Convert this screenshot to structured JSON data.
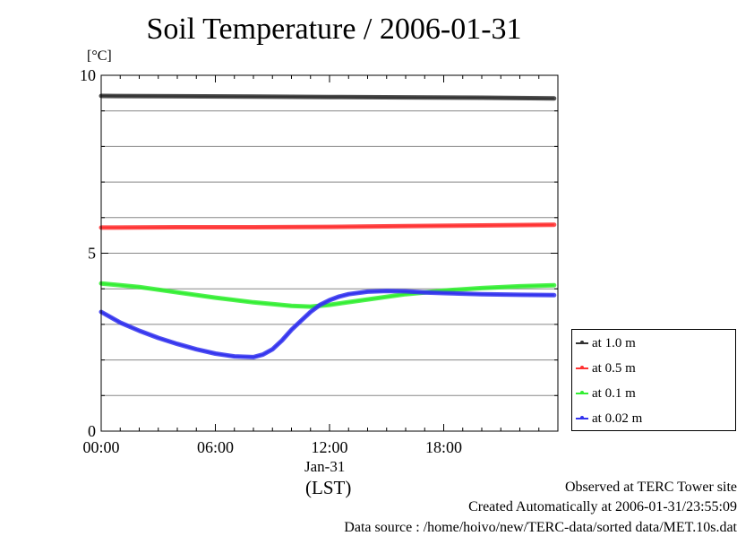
{
  "title": "Soil Temperature / 2006-01-31",
  "y_unit": "[°C]",
  "x_date_label": "Jan-31",
  "x_tz_label": "(LST)",
  "footer": {
    "line1": "Observed at TERC Tower site",
    "line2": "Created Automatically at 2006-01-31/23:55:09",
    "line3": "Data source : /home/hoivo/new/TERC-data/sorted  data/MET.10s.dat"
  },
  "chart_data": {
    "type": "line",
    "title": "Soil Temperature / 2006-01-31",
    "xlabel": "(LST)",
    "ylabel": "[°C]",
    "x_unit": "hours since 00:00 LST",
    "xlim": [
      0,
      24
    ],
    "ylim": [
      0,
      10
    ],
    "x_ticks": [
      {
        "value": 0,
        "label": "00:00"
      },
      {
        "value": 6,
        "label": "06:00"
      },
      {
        "value": 12,
        "label": "12:00"
      },
      {
        "value": 18,
        "label": "18:00"
      }
    ],
    "y_ticks": [
      {
        "value": 0,
        "label": "0"
      },
      {
        "value": 5,
        "label": "5"
      },
      {
        "value": 10,
        "label": "10"
      }
    ],
    "y_gridlines": [
      1,
      2,
      3,
      4,
      5,
      6,
      7,
      8,
      9,
      10
    ],
    "grid": true,
    "legend_position": "right",
    "series": [
      {
        "name": "at 1.0 m",
        "color": "#333333",
        "x": [
          0,
          4,
          8,
          12,
          16,
          20,
          23.8
        ],
        "y": [
          9.42,
          9.41,
          9.4,
          9.39,
          9.38,
          9.37,
          9.35
        ]
      },
      {
        "name": "at 0.5 m",
        "color": "#ff3333",
        "x": [
          0,
          4,
          8,
          12,
          16,
          20,
          23.8
        ],
        "y": [
          5.72,
          5.73,
          5.73,
          5.74,
          5.76,
          5.78,
          5.8
        ]
      },
      {
        "name": "at 0.1 m",
        "color": "#33ee33",
        "x": [
          0,
          2,
          4,
          6,
          8,
          10,
          11,
          12,
          14,
          16,
          18,
          20,
          22,
          23.8
        ],
        "y": [
          4.15,
          4.05,
          3.9,
          3.75,
          3.62,
          3.52,
          3.5,
          3.55,
          3.7,
          3.85,
          3.95,
          4.02,
          4.07,
          4.1
        ]
      },
      {
        "name": "at 0.02 m",
        "color": "#3333ee",
        "x": [
          0,
          1,
          2,
          3,
          4,
          5,
          6,
          7,
          8,
          8.5,
          9,
          9.5,
          10,
          10.5,
          11,
          11.5,
          12,
          12.5,
          13,
          14,
          15,
          16,
          17,
          18,
          20,
          22,
          23.8
        ],
        "y": [
          3.35,
          3.05,
          2.82,
          2.62,
          2.45,
          2.3,
          2.18,
          2.1,
          2.08,
          2.15,
          2.3,
          2.55,
          2.85,
          3.1,
          3.35,
          3.55,
          3.68,
          3.78,
          3.85,
          3.92,
          3.94,
          3.93,
          3.9,
          3.88,
          3.85,
          3.83,
          3.82
        ]
      }
    ]
  }
}
